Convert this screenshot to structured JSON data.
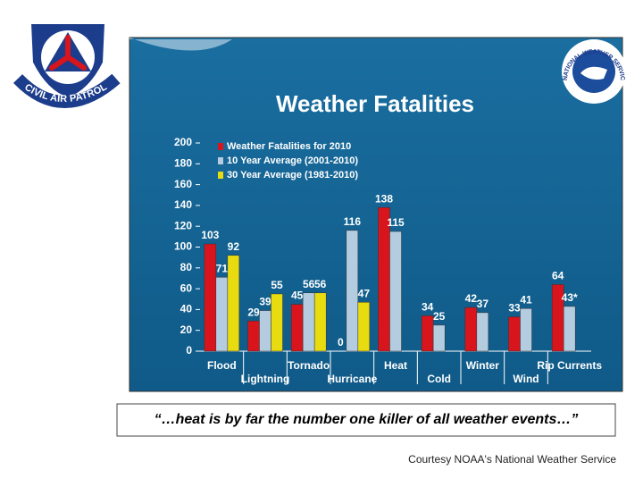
{
  "chart_data": {
    "type": "bar",
    "title": "Weather Fatalities",
    "categories": [
      "Flood",
      "Lightning",
      "Tornado",
      "Hurricane",
      "Heat",
      "Cold",
      "Winter",
      "Wind",
      "Rip Currents"
    ],
    "series": [
      {
        "name": "Weather Fatalities for 2010",
        "color": "#d8141c",
        "values": [
          103,
          29,
          45,
          0,
          138,
          34,
          42,
          33,
          64
        ]
      },
      {
        "name": "10 Year Average (2001-2010)",
        "color": "#b4cce0",
        "values": [
          71,
          39,
          56,
          116,
          115,
          25,
          37,
          41,
          43
        ],
        "value_labels": [
          "71",
          "39",
          "56",
          "116",
          "115",
          "25",
          "37",
          "41",
          "43*"
        ]
      },
      {
        "name": "30 Year Average (1981-2010)",
        "color": "#e8dc10",
        "values": [
          92,
          55,
          56,
          47,
          null,
          null,
          null,
          null,
          null
        ]
      }
    ],
    "ylim": [
      0,
      200
    ],
    "yticks": [
      0,
      20,
      40,
      60,
      80,
      100,
      120,
      140,
      160,
      180,
      200
    ],
    "grid": false
  },
  "slide": {
    "quote": "“…heat is by far the number one killer of all weather events…”",
    "credit": "Courtesy NOAA's National Weather Service",
    "logo_text": "CIVIL AIR PATROL",
    "nws_logo_text": "NATIONAL WEATHER SERVICE"
  }
}
